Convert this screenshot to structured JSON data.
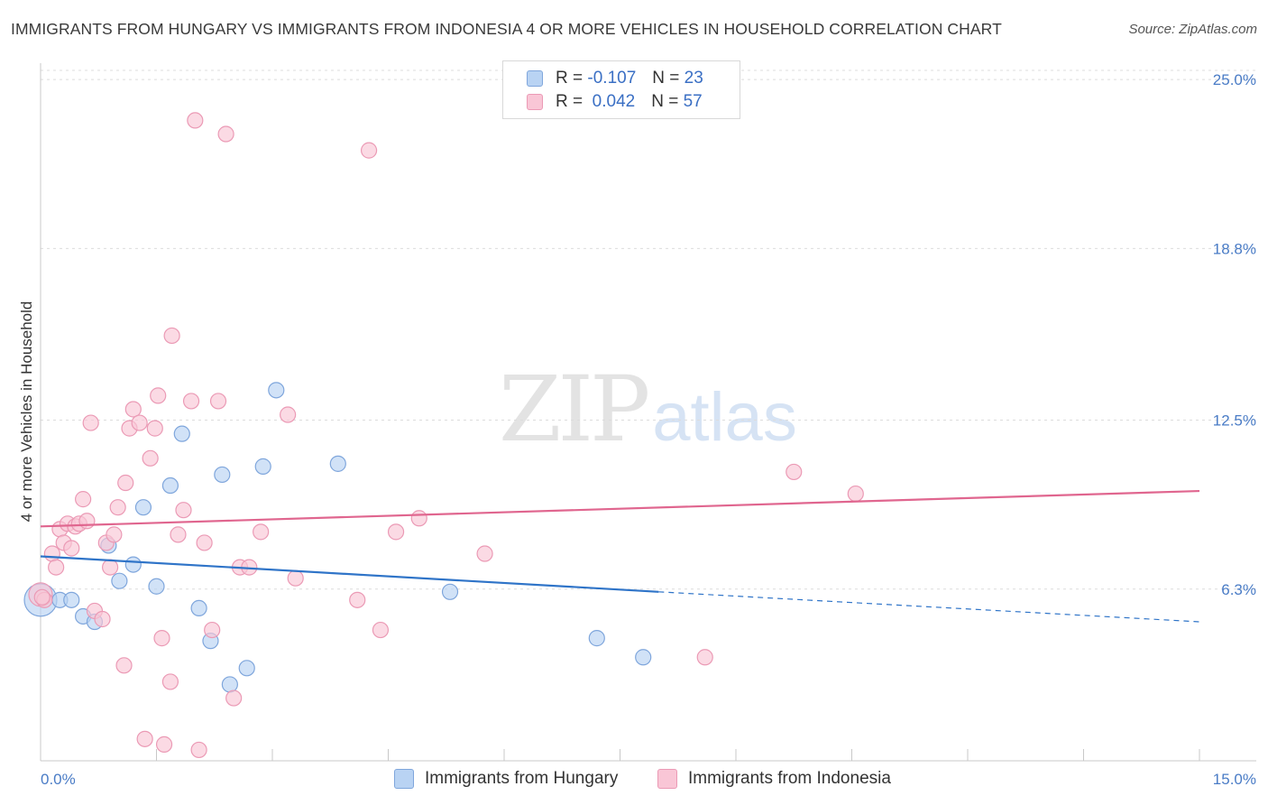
{
  "title": "IMMIGRANTS FROM HUNGARY VS IMMIGRANTS FROM INDONESIA 4 OR MORE VEHICLES IN HOUSEHOLD CORRELATION CHART",
  "source": "Source: ZipAtlas.com",
  "watermark": {
    "part1": "ZIP",
    "part2": "atlas"
  },
  "legend": {
    "rows": [
      {
        "r_label": "R =",
        "r_value": "-0.107",
        "n_label": "N =",
        "n_value": "23",
        "color": "#b9d3f3"
      },
      {
        "r_label": "R =",
        "r_value": "0.042",
        "n_label": "N =",
        "n_value": "57",
        "color": "#f9c6d6"
      }
    ]
  },
  "bottom_legend": [
    "Immigrants from Hungary",
    "Immigrants from Indonesia"
  ],
  "chart_data": {
    "type": "scatter",
    "title": "IMMIGRANTS FROM HUNGARY VS IMMIGRANTS FROM INDONESIA 4 OR MORE VEHICLES IN HOUSEHOLD CORRELATION CHART",
    "xlabel": "",
    "ylabel": "4 or more Vehicles in Household",
    "xlim": [
      0,
      15
    ],
    "ylim": [
      0,
      25.6
    ],
    "x_tick_labels": [
      "0.0%",
      "15.0%"
    ],
    "y_ticks": [
      6.3,
      12.5,
      18.8,
      25.0
    ],
    "y_tick_labels": [
      "6.3%",
      "12.5%",
      "18.8%",
      "25.0%"
    ],
    "grid": true,
    "legend_position": "top-center",
    "series": [
      {
        "name": "Immigrants from Hungary",
        "color": "#b9d3f3",
        "stroke": "#7fa6dc",
        "trend_color": "#2f74c8",
        "trend": {
          "x0": 0,
          "y0": 7.5,
          "x1": 8.0,
          "y1": 6.2,
          "dash_to_x": 15,
          "dash_to_y": 5.1
        },
        "points": [
          [
            0.0,
            5.9
          ],
          [
            0.25,
            5.9
          ],
          [
            0.4,
            5.9
          ],
          [
            0.55,
            5.3
          ],
          [
            0.7,
            5.1
          ],
          [
            0.88,
            7.9
          ],
          [
            1.02,
            6.6
          ],
          [
            1.2,
            7.2
          ],
          [
            1.33,
            9.3
          ],
          [
            1.5,
            6.4
          ],
          [
            1.68,
            10.1
          ],
          [
            1.83,
            12.0
          ],
          [
            2.05,
            5.6
          ],
          [
            2.2,
            4.4
          ],
          [
            2.35,
            10.5
          ],
          [
            2.45,
            2.8
          ],
          [
            2.67,
            3.4
          ],
          [
            2.88,
            10.8
          ],
          [
            3.05,
            13.6
          ],
          [
            3.85,
            10.9
          ],
          [
            5.3,
            6.2
          ],
          [
            7.2,
            4.5
          ],
          [
            7.8,
            3.8
          ]
        ]
      },
      {
        "name": "Immigrants from Indonesia",
        "color": "#f9c6d6",
        "stroke": "#eb9ab5",
        "trend_color": "#e0668f",
        "trend": {
          "x0": 0,
          "y0": 8.6,
          "x1": 15,
          "y1": 9.9
        },
        "points": [
          [
            0.0,
            6.1
          ],
          [
            0.05,
            5.9
          ],
          [
            0.15,
            7.6
          ],
          [
            0.2,
            7.1
          ],
          [
            0.25,
            8.5
          ],
          [
            0.3,
            8.0
          ],
          [
            0.35,
            8.7
          ],
          [
            0.4,
            7.8
          ],
          [
            0.45,
            8.6
          ],
          [
            0.5,
            8.7
          ],
          [
            0.55,
            9.6
          ],
          [
            0.6,
            8.8
          ],
          [
            0.65,
            12.4
          ],
          [
            0.7,
            5.5
          ],
          [
            0.8,
            5.2
          ],
          [
            0.85,
            8.0
          ],
          [
            0.9,
            7.1
          ],
          [
            0.95,
            8.3
          ],
          [
            1.0,
            9.3
          ],
          [
            1.08,
            3.5
          ],
          [
            1.1,
            10.2
          ],
          [
            1.15,
            12.2
          ],
          [
            1.2,
            12.9
          ],
          [
            1.28,
            12.4
          ],
          [
            1.35,
            0.8
          ],
          [
            1.42,
            11.1
          ],
          [
            1.48,
            12.2
          ],
          [
            1.52,
            13.4
          ],
          [
            1.57,
            4.5
          ],
          [
            1.6,
            0.6
          ],
          [
            1.68,
            2.9
          ],
          [
            1.7,
            15.6
          ],
          [
            1.78,
            8.3
          ],
          [
            1.85,
            9.2
          ],
          [
            1.95,
            13.2
          ],
          [
            2.0,
            23.5
          ],
          [
            2.05,
            0.4
          ],
          [
            2.12,
            8.0
          ],
          [
            2.22,
            4.8
          ],
          [
            2.3,
            13.2
          ],
          [
            2.4,
            23.0
          ],
          [
            2.5,
            2.3
          ],
          [
            2.58,
            7.1
          ],
          [
            2.7,
            7.1
          ],
          [
            2.85,
            8.4
          ],
          [
            3.2,
            12.7
          ],
          [
            3.3,
            6.7
          ],
          [
            4.1,
            5.9
          ],
          [
            4.25,
            22.4
          ],
          [
            4.4,
            4.8
          ],
          [
            4.6,
            8.4
          ],
          [
            4.9,
            8.9
          ],
          [
            5.75,
            7.6
          ],
          [
            8.6,
            3.8
          ],
          [
            9.75,
            10.6
          ],
          [
            10.55,
            9.8
          ],
          [
            0.02,
            6.0
          ]
        ]
      }
    ]
  }
}
